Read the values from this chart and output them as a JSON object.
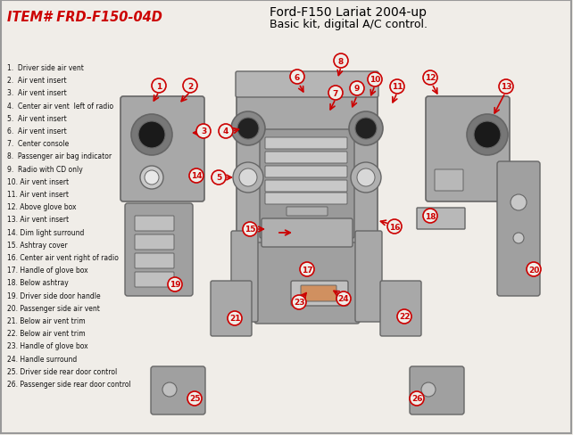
{
  "title1": "Ford-F150 Lariat 2004-up",
  "title2": "Basic kit, digital A/C control.",
  "item_label": "ITEM# FRD-F150-04D",
  "bg_color": "#f0ede8",
  "part_color": "#b0b0b0",
  "dark_part_color": "#888888",
  "outline_color": "#666666",
  "legend_items": [
    "1.  Driver side air vent",
    "2.  Air vent insert",
    "3.  Air vent insert",
    "4.  Center air vent  left of radio",
    "5.  Air vent insert",
    "6.  Air vent insert",
    "7.  Center console",
    "8.  Passenger air bag indicator",
    "9.  Radio with CD only",
    "10. Air vent insert",
    "11. Air vent insert",
    "12. Above glove box",
    "13. Air vent insert",
    "14. Dim light surround",
    "15. Ashtray cover",
    "16. Center air vent right of radio",
    "17. Handle of glove box",
    "18. Below ashtray",
    "19. Driver side door handle",
    "20. Passenger side air vent",
    "21. Below air vent trim",
    "22. Below air vent trim",
    "23. Handle of glove box",
    "24. Handle surround",
    "25. Driver side rear door control",
    "26. Passenger side rear door control"
  ],
  "number_color": "#cc0000",
  "arrow_color": "#cc0000",
  "title_color": "#000000",
  "item_color": "#cc0000"
}
